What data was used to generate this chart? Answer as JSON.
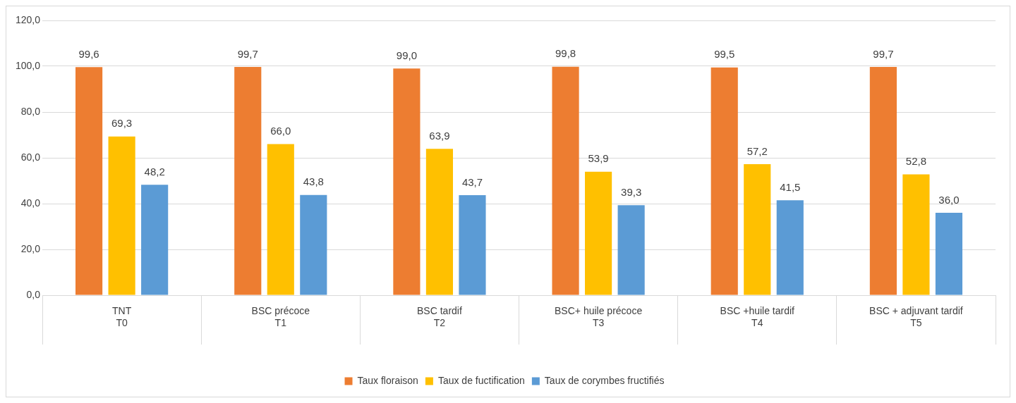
{
  "chart_data": {
    "type": "bar",
    "categories": [
      "TNT\nT0",
      "BSC précoce\nT1",
      "BSC tardif\nT2",
      "BSC+ huile précoce\nT3",
      "BSC +huile tardif\nT4",
      "BSC + adjuvant tardif\nT5"
    ],
    "series": [
      {
        "name": "Taux floraison",
        "color": "#ed7d31",
        "values": [
          99.6,
          99.7,
          99.0,
          99.8,
          99.5,
          99.7
        ],
        "value_labels": [
          "99,6",
          "99,7",
          "99,0",
          "99,8",
          "99,5",
          "99,7"
        ]
      },
      {
        "name": "Taux de fuctification",
        "color": "#ffc000",
        "values": [
          69.3,
          66.0,
          63.9,
          53.9,
          57.2,
          52.8
        ],
        "value_labels": [
          "69,3",
          "66,0",
          "63,9",
          "53,9",
          "57,2",
          "52,8"
        ]
      },
      {
        "name": "Taux de corymbes fructifiés",
        "color": "#5b9bd5",
        "values": [
          48.2,
          43.8,
          43.7,
          39.3,
          41.5,
          36.0
        ],
        "value_labels": [
          "48,2",
          "43,8",
          "43,7",
          "39,3",
          "41,5",
          "36,0"
        ]
      }
    ],
    "ylim": [
      0,
      120
    ],
    "yticks": [
      {
        "value": 0,
        "label": "0,0"
      },
      {
        "value": 20,
        "label": "20,0"
      },
      {
        "value": 40,
        "label": "40,0"
      },
      {
        "value": 60,
        "label": "60,0"
      },
      {
        "value": 80,
        "label": "80,0"
      },
      {
        "value": 100,
        "label": "100,0"
      },
      {
        "value": 120,
        "label": "120,0"
      }
    ],
    "grid": "y",
    "legend": "bottom"
  }
}
